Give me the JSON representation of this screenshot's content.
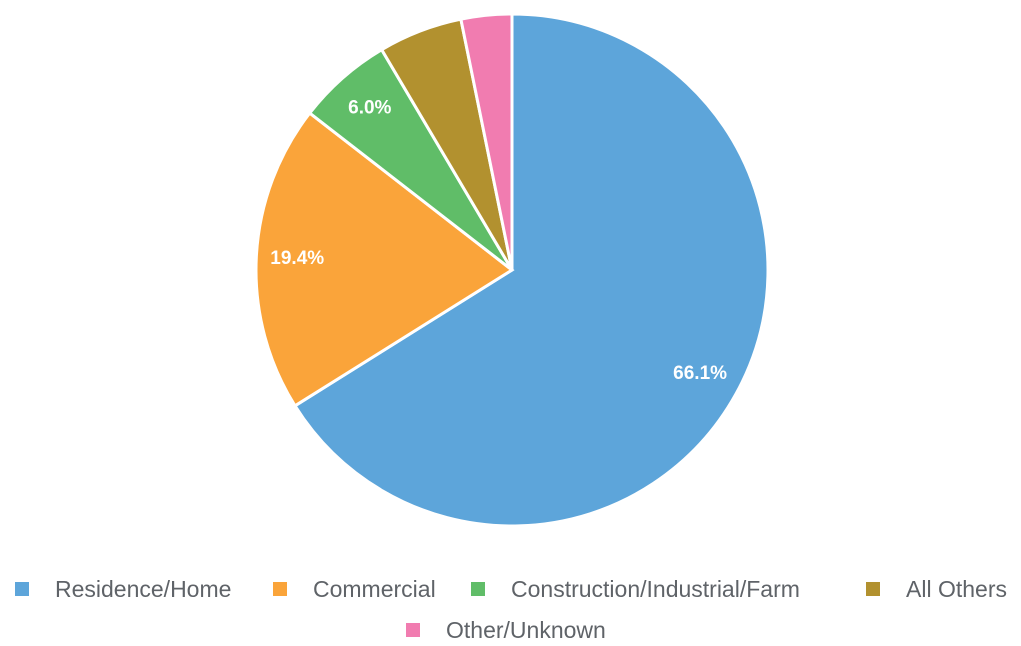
{
  "chart_data": {
    "type": "pie",
    "categories": [
      "Residence/Home",
      "Commercial",
      "Construction/Industrial/Farm",
      "All Others",
      "Other/Unknown"
    ],
    "values": [
      66.1,
      19.4,
      6.0,
      5.3,
      3.2
    ],
    "value_labels": [
      "66.1%",
      "19.4%",
      "6.0%",
      null,
      null
    ],
    "colors": [
      "#5da5da",
      "#faa43a",
      "#60bd68",
      "#b2912f",
      "#f17cb0"
    ],
    "legend": "bottom"
  }
}
